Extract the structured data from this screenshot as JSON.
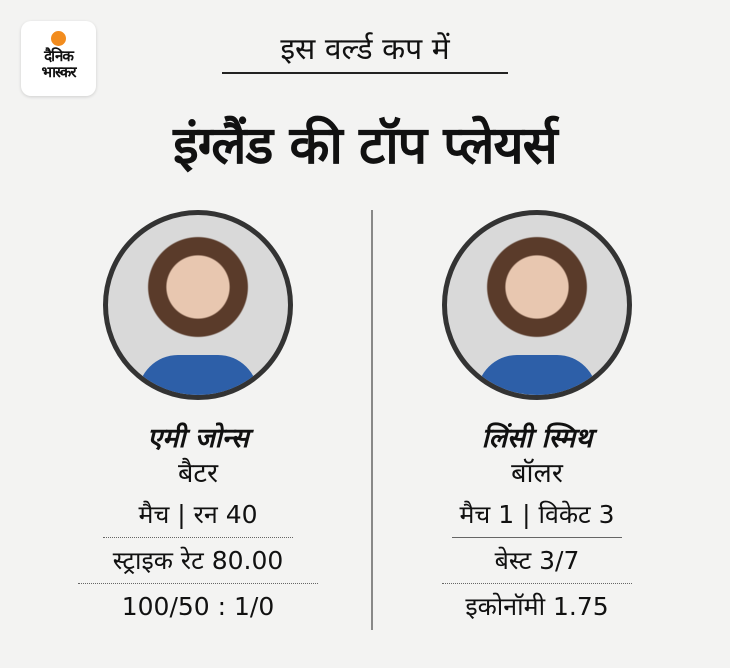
{
  "logo": {
    "line1": "दैनिक",
    "line2": "भास्कर",
    "color": "#f28c1e"
  },
  "subtitle": "इस वर्ल्ड कप में",
  "title": "इंग्लैंड की टॉप प्लेयर्स",
  "players": [
    {
      "name": "एमी जोन्स",
      "role": "बैटर",
      "stats": [
        "मैच | रन 40",
        "स्ट्राइक रेट 80.00",
        "100/50 : 1/0"
      ]
    },
    {
      "name": "लिंसी स्मिथ",
      "role": "बॉलर",
      "stats": [
        "मैच 1 | विकेट 3",
        "बेस्ट 3/7",
        "इकोनॉमी 1.75"
      ]
    }
  ]
}
